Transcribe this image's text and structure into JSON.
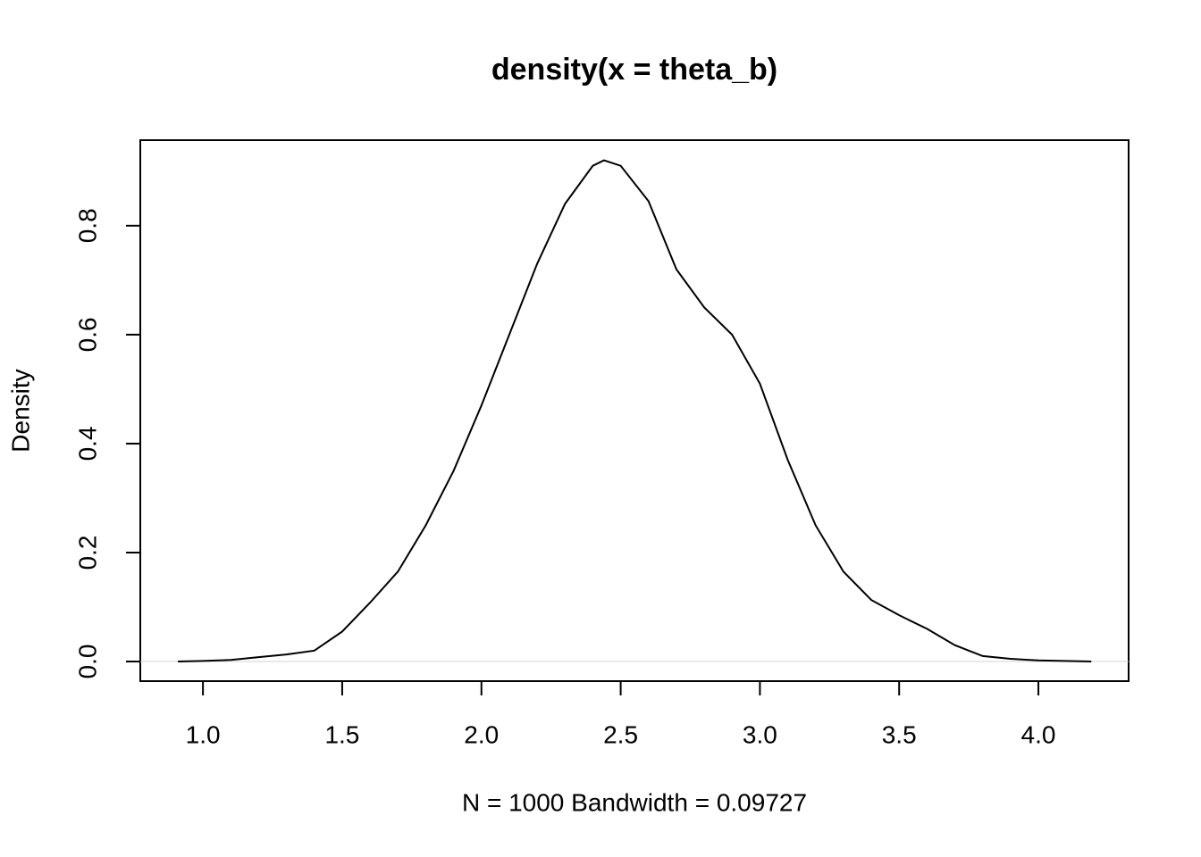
{
  "chart_data": {
    "type": "line",
    "title": "density(x = theta_b)",
    "xlabel": "N = 1000   Bandwidth = 0.09727",
    "ylabel": "Density",
    "x": [
      0.91,
      1.0,
      1.1,
      1.2,
      1.3,
      1.4,
      1.5,
      1.6,
      1.7,
      1.8,
      1.9,
      2.0,
      2.1,
      2.2,
      2.3,
      2.4,
      2.44,
      2.5,
      2.6,
      2.7,
      2.8,
      2.9,
      3.0,
      3.1,
      3.2,
      3.3,
      3.4,
      3.5,
      3.6,
      3.7,
      3.8,
      3.9,
      4.0,
      4.19
    ],
    "series": [
      {
        "color": "#000000",
        "values": [
          0.0,
          0.001,
          0.003,
          0.008,
          0.013,
          0.02,
          0.055,
          0.108,
          0.165,
          0.25,
          0.35,
          0.47,
          0.6,
          0.73,
          0.84,
          0.91,
          0.92,
          0.91,
          0.845,
          0.72,
          0.65,
          0.6,
          0.51,
          0.37,
          0.25,
          0.165,
          0.113,
          0.085,
          0.06,
          0.03,
          0.01,
          0.005,
          0.002,
          0.0
        ]
      }
    ],
    "xlim": [
      0.775,
      4.324
    ],
    "ylim": [
      -0.036,
      0.957
    ],
    "xticks": [
      {
        "value": 1,
        "label": "1.0"
      },
      1.5,
      {
        "value": 2,
        "label": "2.0"
      },
      2.5,
      {
        "value": 3,
        "label": "3.0"
      },
      3.5,
      {
        "value": 4,
        "label": "4.0"
      }
    ],
    "yticks": [
      {
        "value": 0,
        "label": "0.0"
      },
      0.2,
      0.4,
      0.6,
      0.8
    ],
    "zero_line": true,
    "zero_line_color": "#d3d3d3"
  }
}
